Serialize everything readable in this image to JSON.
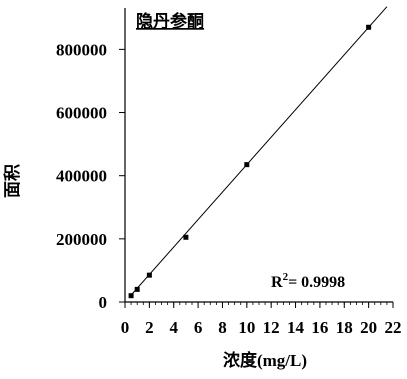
{
  "chart_data": {
    "type": "scatter",
    "title": "隐丹参酮",
    "xlabel": "浓度(mg/L)",
    "ylabel": "面积",
    "xlim": [
      0,
      22
    ],
    "ylim": [
      0,
      950000
    ],
    "x_ticks": [
      0,
      2,
      4,
      6,
      8,
      10,
      12,
      14,
      16,
      18,
      20,
      22
    ],
    "x_tick_labels": [
      "0",
      "2",
      "4",
      "6",
      "8",
      "10",
      "12",
      "14",
      "16",
      "18",
      "20",
      "22"
    ],
    "y_ticks": [
      0,
      200000,
      400000,
      600000,
      800000
    ],
    "y_tick_labels": [
      "0",
      "200000",
      "400000",
      "600000",
      "800000"
    ],
    "series": [
      {
        "points": [
          {
            "x": 0.5,
            "y": 20000
          },
          {
            "x": 1.0,
            "y": 40000
          },
          {
            "x": 2.0,
            "y": 85000
          },
          {
            "x": 5.0,
            "y": 205000
          },
          {
            "x": 10.0,
            "y": 435000
          },
          {
            "x": 20.0,
            "y": 870000
          }
        ]
      }
    ],
    "fit_line": {
      "x_range": [
        0.4,
        21.5
      ],
      "slope": 43500,
      "intercept": 0
    },
    "annotation": {
      "r2_label": "R",
      "r2_sup": "2",
      "r2_value": "= 0.9998"
    },
    "grid": false,
    "legend": "none"
  }
}
